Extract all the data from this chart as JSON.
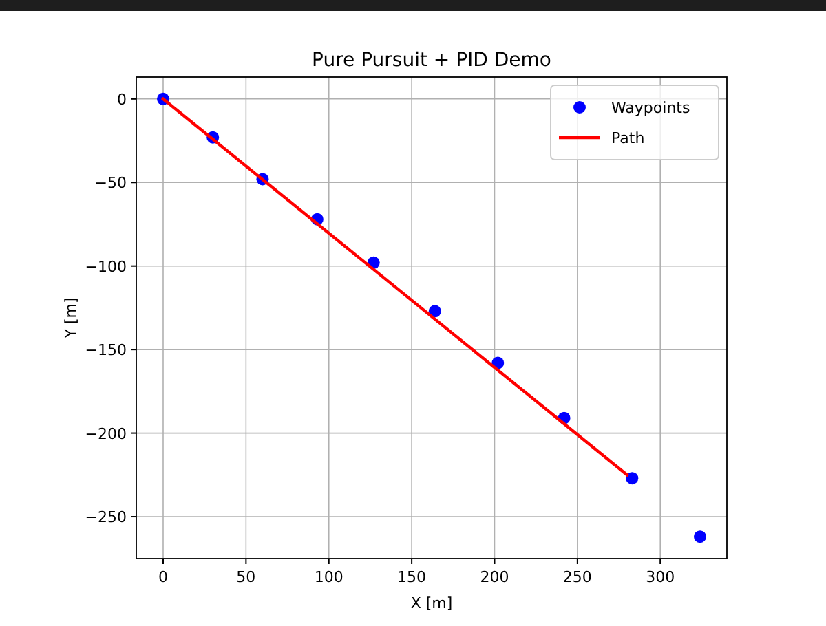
{
  "chart_data": {
    "type": "scatter",
    "title": "Pure Pursuit + PID Demo",
    "xlabel": "X [m]",
    "ylabel": "Y [m]",
    "series": [
      {
        "name": "Waypoints",
        "marker": "circle",
        "color": "#0000ff",
        "x": [
          0,
          30,
          60,
          93,
          127,
          164,
          202,
          242,
          283,
          324
        ],
        "values": [
          0,
          -23,
          -48,
          -72,
          -98,
          -127,
          -158,
          -191,
          -227,
          -262
        ]
      },
      {
        "name": "Path",
        "type": "line",
        "marker": "none",
        "color": "#ff0000",
        "x": [
          0,
          280
        ],
        "values": [
          0,
          -225
        ]
      }
    ],
    "xlim": [
      -16.2,
      340.2
    ],
    "ylim": [
      -275.1,
      13.1
    ],
    "xticks": [
      0,
      50,
      100,
      150,
      200,
      250,
      300
    ],
    "yticks": [
      {
        "value": 0,
        "label": "0"
      },
      {
        "value": -50,
        "label": "−50"
      },
      {
        "value": -100,
        "label": "−100"
      },
      {
        "value": -150,
        "label": "−150"
      },
      {
        "value": -200,
        "label": "−200"
      },
      {
        "value": -250,
        "label": "−250"
      }
    ],
    "grid": true,
    "legend": "top right"
  }
}
